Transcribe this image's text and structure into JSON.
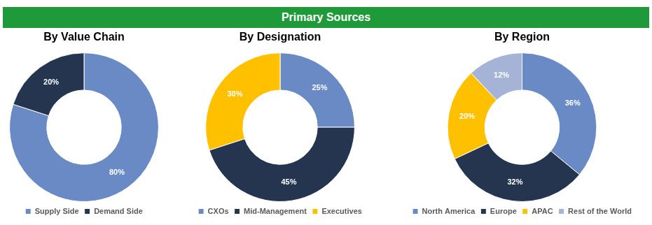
{
  "title": "Primary Sources",
  "chart_data": [
    {
      "type": "doughnut",
      "title": "By Value Chain",
      "categories": [
        "Supply Side",
        "Demand Side"
      ],
      "values": [
        80,
        20
      ],
      "value_labels": [
        "80%",
        "20%"
      ],
      "colors": [
        "#6a8ac6",
        "#253550"
      ],
      "data_labels": true,
      "legend": "bottom"
    },
    {
      "type": "doughnut",
      "title": "By Designation",
      "categories": [
        "CXOs",
        "Mid-Management",
        "Executives"
      ],
      "values": [
        25,
        45,
        30
      ],
      "value_labels": [
        "25%",
        "45%",
        "30%"
      ],
      "colors": [
        "#6a8ac6",
        "#253550",
        "#ffc000"
      ],
      "data_labels": true,
      "legend": "bottom"
    },
    {
      "type": "doughnut",
      "title": "By Region",
      "categories": [
        "North America",
        "Europe",
        "APAC",
        "Rest of the World"
      ],
      "values": [
        36,
        32,
        20,
        12
      ],
      "value_labels": [
        "36%",
        "32%",
        "20%",
        "12%"
      ],
      "colors": [
        "#6a8ac6",
        "#253550",
        "#ffc000",
        "#a5b4d6"
      ],
      "data_labels": true,
      "legend": "bottom"
    }
  ]
}
